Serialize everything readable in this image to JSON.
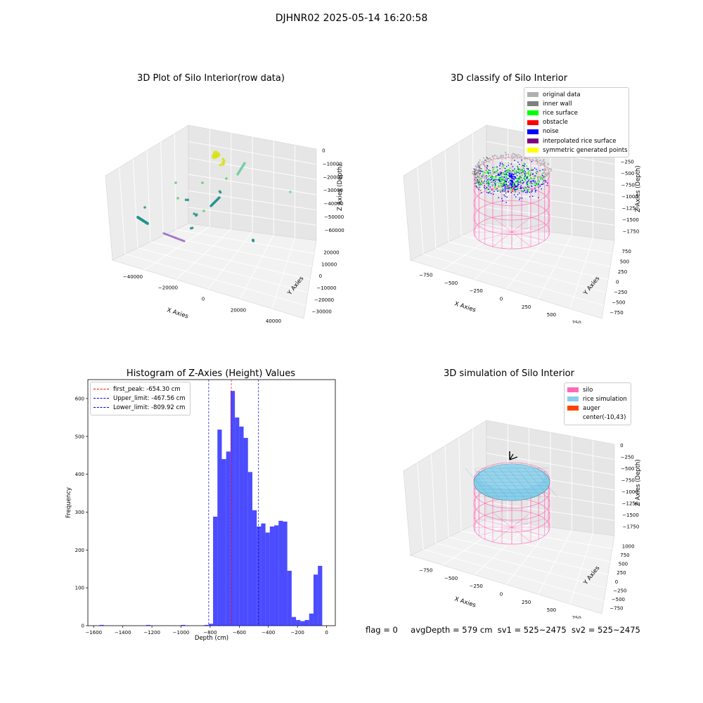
{
  "figure_title": "DJHNR02 2025-05-14 16:20:58",
  "chart_data": [
    {
      "type": "scatter",
      "title": "3D Plot of Silo Interior(row data)",
      "xlabel": "X Axies",
      "ylabel": "Y Axies",
      "zlabel": "Z Axies (Depth)",
      "x_ticks": [
        "−40000",
        "−20000",
        "0",
        "20000",
        "40000"
      ],
      "y_ticks": [
        "−30000",
        "−20000",
        "−10000",
        "0",
        "10000",
        "20000"
      ],
      "z_ticks": [
        "0",
        "−10000",
        "−20000",
        "−30000",
        "−40000",
        "−50000",
        "−60000"
      ],
      "colors": {
        "yellow": "#d8e219",
        "light_green": "#5ec962",
        "teal": "#21918c",
        "purple": "#9a6fc5",
        "mint": "#6fcfa0"
      }
    },
    {
      "type": "scatter",
      "title": "3D classify of Silo Interior",
      "zlabel": "Z Axies (Depth)",
      "xlabel": "X Axies",
      "ylabel": "Y Axies",
      "x_ticks": [
        "−750",
        "−500",
        "−250",
        "0",
        "250",
        "500",
        "750"
      ],
      "y_ticks": [
        "−750",
        "−500",
        "−250",
        "0",
        "250",
        "500",
        "750"
      ],
      "z_ticks": [
        "0",
        "−250",
        "−500",
        "−750",
        "−1000",
        "−1250",
        "−1500",
        "−1750"
      ],
      "legend": [
        {
          "label": "original data",
          "color": "#b0b0b0"
        },
        {
          "label": "inner wall",
          "color": "#808080"
        },
        {
          "label": "rice surface",
          "color": "#00ff00"
        },
        {
          "label": "obstacle",
          "color": "#ff0000"
        },
        {
          "label": "noise",
          "color": "#0000ff"
        },
        {
          "label": "interpolated rice surface",
          "color": "#800080"
        },
        {
          "label": "symmetric generated points",
          "color": "#ffff00"
        }
      ]
    },
    {
      "type": "bar",
      "title": "Histogram of Z-Axies (Height) Values",
      "xlabel": "Depth (cm)",
      "ylabel": "Frequency",
      "xlim": [
        -1640,
        60
      ],
      "ylim": [
        0,
        650
      ],
      "x_ticks": [
        -1600,
        -1400,
        -1200,
        -1000,
        -800,
        -600,
        -400,
        -200,
        0
      ],
      "y_ticks": [
        0,
        100,
        200,
        300,
        400,
        500,
        600
      ],
      "bar_color": "#0000ff",
      "bins": [
        {
          "start": -1560,
          "end": -1530,
          "value": 2
        },
        {
          "start": -1240,
          "end": -1210,
          "value": 2
        },
        {
          "start": -1000,
          "end": -970,
          "value": 2
        },
        {
          "start": -840,
          "end": -810,
          "value": 2
        },
        {
          "start": -810,
          "end": -780,
          "value": 5
        },
        {
          "start": -780,
          "end": -750,
          "value": 288
        },
        {
          "start": -750,
          "end": -720,
          "value": 518
        },
        {
          "start": -720,
          "end": -690,
          "value": 440
        },
        {
          "start": -690,
          "end": -660,
          "value": 460
        },
        {
          "start": -660,
          "end": -630,
          "value": 620
        },
        {
          "start": -630,
          "end": -600,
          "value": 550
        },
        {
          "start": -600,
          "end": -570,
          "value": 526
        },
        {
          "start": -570,
          "end": -540,
          "value": 496
        },
        {
          "start": -540,
          "end": -510,
          "value": 406
        },
        {
          "start": -510,
          "end": -480,
          "value": 305
        },
        {
          "start": -480,
          "end": -450,
          "value": 262
        },
        {
          "start": -450,
          "end": -420,
          "value": 270
        },
        {
          "start": -420,
          "end": -390,
          "value": 246
        },
        {
          "start": -390,
          "end": -360,
          "value": 262
        },
        {
          "start": -360,
          "end": -330,
          "value": 265
        },
        {
          "start": -330,
          "end": -300,
          "value": 277
        },
        {
          "start": -300,
          "end": -270,
          "value": 275
        },
        {
          "start": -270,
          "end": -240,
          "value": 145
        },
        {
          "start": -240,
          "end": -210,
          "value": 23
        },
        {
          "start": -210,
          "end": -180,
          "value": 15
        },
        {
          "start": -180,
          "end": -150,
          "value": 12
        },
        {
          "start": -150,
          "end": -120,
          "value": 15
        },
        {
          "start": -120,
          "end": -90,
          "value": 32
        },
        {
          "start": -90,
          "end": -60,
          "value": 135
        },
        {
          "start": -60,
          "end": -30,
          "value": 158
        }
      ],
      "lines": [
        {
          "label": "first_peak: -654.30 cm",
          "x": -654.3,
          "color": "#ff0000"
        },
        {
          "label": "Upper_limit: -467.56 cm",
          "x": -467.56,
          "color": "#0000cc"
        },
        {
          "label": "Lower_limit: -809.92 cm",
          "x": -809.92,
          "color": "#0000cc"
        }
      ],
      "legend_position": "top-left"
    },
    {
      "type": "scatter",
      "title": "3D simulation of Silo Interior",
      "zlabel": "Z Axies (Depth)",
      "xlabel": "X Axies",
      "ylabel": "Y Axies",
      "x_ticks": [
        "−750",
        "−500",
        "−250",
        "0",
        "250",
        "500",
        "750"
      ],
      "y_ticks": [
        "−750",
        "−500",
        "−250",
        "0",
        "250",
        "500",
        "750",
        "1000"
      ],
      "z_ticks": [
        "0",
        "−250",
        "−500",
        "−750",
        "−1000",
        "−1250",
        "−1500",
        "−1750"
      ],
      "legend": [
        {
          "label": "silo",
          "color": "#ff69b4"
        },
        {
          "label": "rice simulation",
          "color": "#87ceeb"
        },
        {
          "label": "auger",
          "color": "#ff4500"
        },
        {
          "label": "center(-10,43)",
          "color": ""
        }
      ]
    }
  ],
  "footer": {
    "flag": "flag = 0",
    "avg": "avgDepth = 579 cm",
    "sv1": "sv1 = 525~2475",
    "sv2": "sv2 = 525~2475"
  }
}
